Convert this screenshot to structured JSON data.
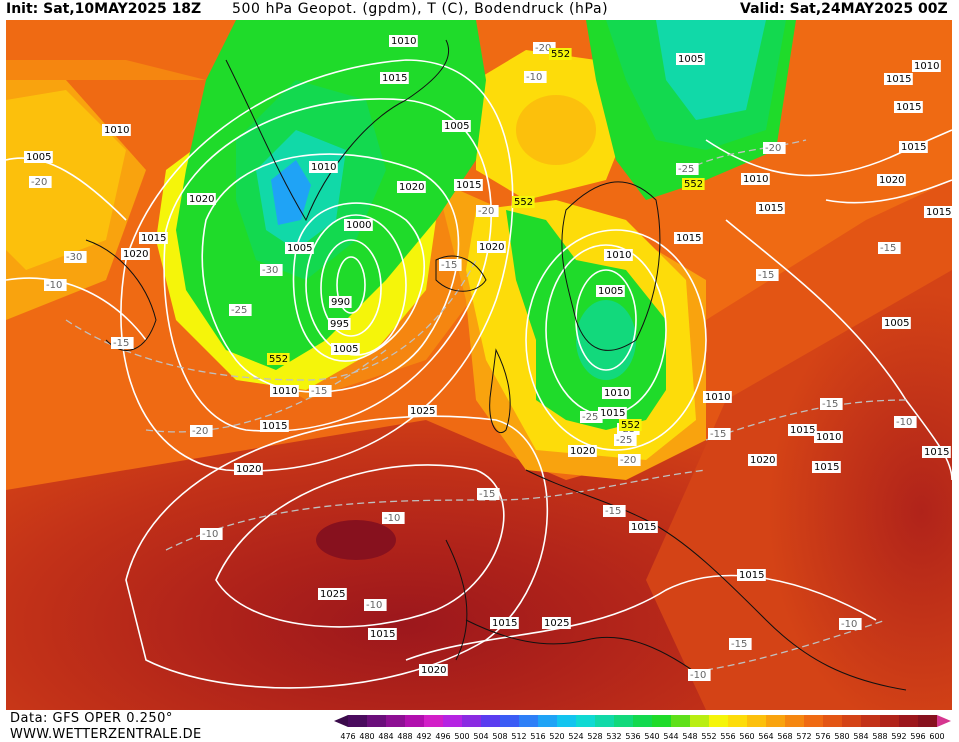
{
  "header": {
    "init": "Init: Sat,10MAY2025 18Z",
    "title": "500 hPa Geopot. (gpdm), T (C), Bodendruck (hPa)",
    "valid": "Valid: Sat,24MAY2025 00Z"
  },
  "footer": {
    "data_source": "Data: GFS OPER 0.250°",
    "website": "WWW.WETTERZENTRALE.DE"
  },
  "colorbar": {
    "ticks": [
      "476",
      "480",
      "484",
      "488",
      "492",
      "496",
      "500",
      "504",
      "508",
      "512",
      "516",
      "520",
      "524",
      "528",
      "532",
      "536",
      "540",
      "544",
      "548",
      "552",
      "556",
      "560",
      "564",
      "568",
      "572",
      "576",
      "580",
      "584",
      "588",
      "592",
      "596",
      "600"
    ],
    "colors": [
      "#4a0b5e",
      "#6a0e7a",
      "#8d0f93",
      "#b10fae",
      "#d21fc8",
      "#b524e2",
      "#8a2be2",
      "#5a3cf0",
      "#3b5cf5",
      "#2e7ff7",
      "#1fa3f6",
      "#13c4ef",
      "#10d9d3",
      "#11d9a8",
      "#12d97c",
      "#13d94f",
      "#1fdb2a",
      "#5fe01a",
      "#b9ee12",
      "#f5f50a",
      "#fddc0a",
      "#fcc00c",
      "#f9a30e",
      "#f58610",
      "#ef6a13",
      "#e35514",
      "#d44316",
      "#c33218",
      "#b0231a",
      "#9c171c",
      "#87111e"
    ],
    "arrow_low": "#3a0a4a",
    "arrow_high": "#d6368f"
  },
  "map_labels": {
    "isobars": [
      {
        "text": "1010",
        "t": "isobar"
      },
      {
        "text": "1015",
        "t": "isobar"
      },
      {
        "text": "1010",
        "t": "isobar"
      },
      {
        "text": "1005",
        "t": "isobar"
      },
      {
        "text": "1005",
        "t": "isobar"
      },
      {
        "text": "1010",
        "t": "isobar"
      },
      {
        "text": "1005",
        "t": "isobar"
      },
      {
        "text": "1010",
        "t": "isobar"
      },
      {
        "text": "1020",
        "t": "isobar"
      },
      {
        "text": "1010",
        "t": "isobar"
      },
      {
        "text": "1020",
        "t": "isobar"
      },
      {
        "text": "1015",
        "t": "isobar"
      },
      {
        "text": "1020",
        "t": "isobar"
      },
      {
        "text": "1015",
        "t": "isobar"
      },
      {
        "text": "1005",
        "t": "isobar"
      },
      {
        "text": "1000",
        "t": "isobar"
      },
      {
        "text": "990",
        "t": "isobar"
      },
      {
        "text": "995",
        "t": "isobar"
      },
      {
        "text": "1005",
        "t": "isobar"
      },
      {
        "text": "1010",
        "t": "isobar"
      },
      {
        "text": "1015",
        "t": "isobar"
      },
      {
        "text": "1020",
        "t": "isobar"
      },
      {
        "text": "1020",
        "t": "isobar"
      },
      {
        "text": "1010",
        "t": "isobar"
      },
      {
        "text": "1005",
        "t": "isobar"
      },
      {
        "text": "1010",
        "t": "isobar"
      },
      {
        "text": "1015",
        "t": "isobar"
      },
      {
        "text": "1025",
        "t": "isobar"
      },
      {
        "text": "1020",
        "t": "isobar"
      },
      {
        "text": "1010",
        "t": "isobar"
      },
      {
        "text": "1015",
        "t": "isobar"
      },
      {
        "text": "1015",
        "t": "isobar"
      },
      {
        "text": "1020",
        "t": "isobar"
      },
      {
        "text": "1015",
        "t": "isobar"
      },
      {
        "text": "1010",
        "t": "isobar"
      },
      {
        "text": "1005",
        "t": "isobar"
      },
      {
        "text": "1020",
        "t": "isobar"
      },
      {
        "text": "1015",
        "t": "isobar"
      },
      {
        "text": "1025",
        "t": "isobar"
      },
      {
        "text": "1015",
        "t": "isobar"
      },
      {
        "text": "1015",
        "t": "isobar"
      },
      {
        "text": "1015",
        "t": "isobar"
      },
      {
        "text": "1025",
        "t": "isobar"
      },
      {
        "text": "1020",
        "t": "isobar"
      },
      {
        "text": "1015",
        "t": "isobar"
      },
      {
        "text": "1015",
        "t": "isobar"
      },
      {
        "text": "1015",
        "t": "isobar"
      },
      {
        "text": "1015",
        "t": "isobar"
      },
      {
        "text": "1015",
        "t": "isobar"
      },
      {
        "text": "1015",
        "t": "isobar"
      }
    ],
    "temperatures": [
      {
        "text": "-15",
        "t": "temp"
      },
      {
        "text": "-20",
        "t": "temp"
      },
      {
        "text": "-30",
        "t": "temp"
      },
      {
        "text": "-25",
        "t": "temp"
      },
      {
        "text": "-15",
        "t": "temp"
      },
      {
        "text": "-15",
        "t": "temp"
      },
      {
        "text": "-20",
        "t": "temp"
      },
      {
        "text": "-15",
        "t": "temp"
      },
      {
        "text": "-20",
        "t": "temp"
      },
      {
        "text": "-25",
        "t": "temp"
      },
      {
        "text": "-20",
        "t": "temp"
      },
      {
        "text": "-25",
        "t": "temp"
      },
      {
        "text": "-15",
        "t": "temp"
      },
      {
        "text": "-15",
        "t": "temp"
      },
      {
        "text": "-15",
        "t": "temp"
      },
      {
        "text": "-20",
        "t": "temp"
      },
      {
        "text": "-25",
        "t": "temp"
      },
      {
        "text": "-25",
        "t": "temp"
      },
      {
        "text": "-15",
        "t": "temp"
      },
      {
        "text": "-15",
        "t": "temp"
      },
      {
        "text": "-10",
        "t": "temp"
      },
      {
        "text": "-10",
        "t": "temp"
      },
      {
        "text": "-10",
        "t": "temp"
      },
      {
        "text": "-15",
        "t": "temp"
      },
      {
        "text": "-10",
        "t": "temp"
      },
      {
        "text": "-10",
        "t": "temp"
      },
      {
        "text": "-10",
        "t": "temp"
      },
      {
        "text": "-10",
        "t": "temp"
      },
      {
        "text": "-10",
        "t": "temp"
      },
      {
        "text": "-20",
        "t": "temp"
      },
      {
        "text": "-30",
        "t": "temp"
      }
    ],
    "geopotential": [
      {
        "text": "552",
        "t": "geo"
      },
      {
        "text": "552",
        "t": "geo"
      },
      {
        "text": "552",
        "t": "geo"
      },
      {
        "text": "552",
        "t": "geo"
      },
      {
        "text": "552",
        "t": "geo"
      }
    ]
  }
}
